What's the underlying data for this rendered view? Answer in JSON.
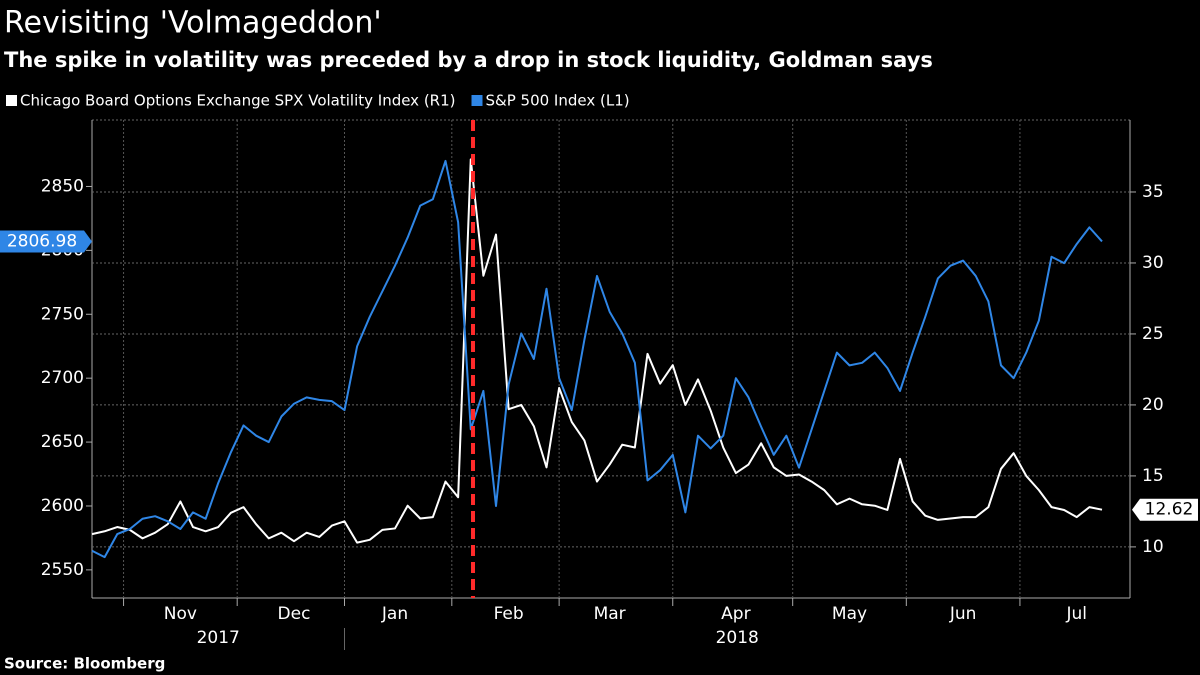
{
  "chart_data": {
    "type": "line",
    "title": "Revisiting 'Volmageddon'",
    "subtitle": "The spike in volatility was preceded by a drop in stock liquidity, Goldman says",
    "source": "Source: Bloomberg",
    "categories": [
      null,
      null,
      null,
      null,
      null,
      null,
      null,
      "Nov",
      null,
      null,
      null,
      null,
      null,
      null,
      null,
      null,
      "Dec",
      null,
      null,
      null,
      null,
      null,
      null,
      null,
      "Jan",
      null,
      null,
      null,
      null,
      null,
      null,
      null,
      null,
      "Feb",
      null,
      null,
      null,
      null,
      null,
      null,
      null,
      "Mar",
      null,
      null,
      null,
      null,
      null,
      null,
      null,
      null,
      null,
      "Apr",
      null,
      null,
      null,
      null,
      null,
      null,
      null,
      null,
      "May",
      null,
      null,
      null,
      null,
      null,
      null,
      null,
      null,
      "Jun",
      null,
      null,
      null,
      null,
      null,
      null,
      null,
      null,
      "Jul",
      null,
      null
    ],
    "x_groups": [
      "2017",
      "2018"
    ],
    "series": [
      {
        "name": "Chicago Board Options Exchange SPX Volatility Index (R1)",
        "color": "#ffffff",
        "axis": "y2",
        "values": [
          10.9,
          11.1,
          11.4,
          11.2,
          10.6,
          11.0,
          11.6,
          13.2,
          11.4,
          11.1,
          11.4,
          12.4,
          12.8,
          11.6,
          10.6,
          11.0,
          10.4,
          11.0,
          10.7,
          11.5,
          11.8,
          10.3,
          10.5,
          11.2,
          11.3,
          12.9,
          12.0,
          12.1,
          14.6,
          13.5,
          37.3,
          29.1,
          32.0,
          19.7,
          20.0,
          18.5,
          15.6,
          21.2,
          18.8,
          17.5,
          14.6,
          15.8,
          17.2,
          17.0,
          23.6,
          21.5,
          22.8,
          20.0,
          21.8,
          19.6,
          17.0,
          15.2,
          15.8,
          17.3,
          15.6,
          15.0,
          15.1,
          14.6,
          14.0,
          13.0,
          13.4,
          13.0,
          12.9,
          12.6,
          16.2,
          13.2,
          12.2,
          11.9,
          12.0,
          12.1,
          12.1,
          12.8,
          15.5,
          16.6,
          15.0,
          14.0,
          12.8,
          12.6,
          12.1,
          12.8,
          12.62
        ]
      },
      {
        "name": "S&P 500 Index (L1)",
        "color": "#2f86e6",
        "axis": "y",
        "values": [
          2565,
          2560,
          2578,
          2582,
          2590,
          2592,
          2588,
          2582,
          2595,
          2590,
          2618,
          2642,
          2663,
          2655,
          2650,
          2670,
          2680,
          2685,
          2683,
          2682,
          2675,
          2725,
          2748,
          2768,
          2788,
          2810,
          2835,
          2840,
          2870,
          2822,
          2660,
          2690,
          2600,
          2695,
          2735,
          2715,
          2770,
          2700,
          2675,
          2730,
          2780,
          2752,
          2735,
          2712,
          2620,
          2628,
          2640,
          2595,
          2655,
          2645,
          2655,
          2700,
          2685,
          2662,
          2640,
          2655,
          2630,
          2660,
          2690,
          2720,
          2710,
          2712,
          2720,
          2708,
          2690,
          2720,
          2748,
          2778,
          2788,
          2792,
          2780,
          2760,
          2710,
          2700,
          2720,
          2745,
          2795,
          2790,
          2805,
          2818,
          2806.98
        ]
      }
    ],
    "ylim": [
      2528,
      2902
    ],
    "yticks": [
      2550,
      2600,
      2650,
      2700,
      2750,
      2800,
      2850
    ],
    "y2lim": [
      6.4,
      40.07
    ],
    "y2ticks": [
      10,
      15,
      20,
      25,
      30,
      35
    ],
    "grid": true
  }
}
